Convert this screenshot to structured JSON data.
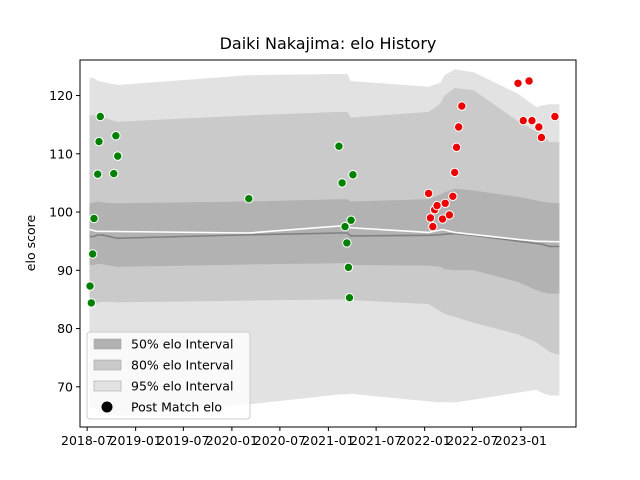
{
  "chart_data": {
    "type": "scatter",
    "title": "Daiki Nakajima: elo History",
    "xlabel": "",
    "ylabel": "elo score",
    "xlim": [
      "2018-06-04",
      "2023-07-29"
    ],
    "ylim": [
      63.1,
      126.1
    ],
    "x_ticks": [
      "2018-07",
      "2019-01",
      "2019-07",
      "2020-01",
      "2020-07",
      "2021-01",
      "2021-07",
      "2022-01",
      "2022-07",
      "2023-01"
    ],
    "x_tick_dates": [
      "2018-07-01",
      "2019-01-01",
      "2019-07-01",
      "2020-01-01",
      "2020-07-01",
      "2021-01-01",
      "2021-07-01",
      "2022-01-01",
      "2022-07-01",
      "2023-01-01"
    ],
    "y_ticks": [
      70,
      80,
      90,
      100,
      110,
      120
    ],
    "legend": {
      "position": "lower-left",
      "entries": [
        "50% elo Interval",
        "80% elo Interval",
        "95% elo Interval",
        "Post Match elo"
      ]
    },
    "colors": {
      "band95": "#e2e2e2",
      "band80": "#cacaca",
      "band50": "#b2b2b2",
      "mean_line": "#808080",
      "white_line": "#ffffff",
      "win": "#008000",
      "loss": "#ee0000"
    },
    "bands": {
      "x": [
        "2018-07-10",
        "2018-07-25",
        "2018-08-12",
        "2018-09-03",
        "2018-10-23",
        "2020-03-05",
        "2021-02-15",
        "2021-03-15",
        "2021-03-26",
        "2022-01-16",
        "2022-03-01",
        "2022-03-18",
        "2022-04-25",
        "2022-07-06",
        "2022-12-21",
        "2023-03-01",
        "2023-03-20",
        "2023-04-20",
        "2023-05-27"
      ],
      "mean": [
        95.8,
        95.8,
        96.1,
        96.0,
        95.5,
        96.1,
        96.4,
        96.4,
        95.9,
        96.0,
        96.1,
        96.2,
        96.3,
        96.0,
        95.0,
        94.6,
        94.5,
        94.1,
        94.1
      ],
      "p50_low": [
        90.9,
        90.9,
        91.1,
        91.0,
        90.6,
        91.0,
        91.2,
        91.2,
        90.9,
        90.8,
        90.6,
        90.2,
        90.0,
        90.0,
        88.0,
        86.6,
        86.3,
        86.0,
        86.0
      ],
      "p50_high": [
        101.6,
        101.6,
        101.8,
        101.6,
        101.5,
        101.8,
        102.2,
        102.2,
        101.8,
        102.2,
        103.0,
        103.4,
        104.0,
        103.7,
        102.6,
        102.0,
        101.8,
        101.6,
        101.5
      ],
      "p80_low": [
        84.1,
        84.1,
        84.5,
        84.6,
        84.5,
        84.8,
        85.0,
        85.0,
        84.9,
        84.2,
        83.0,
        82.5,
        82.0,
        81.0,
        79.0,
        77.6,
        77.0,
        76.0,
        75.5
      ],
      "p80_high": [
        116.6,
        116.6,
        116.4,
        116.2,
        115.5,
        116.6,
        117.2,
        117.2,
        116.2,
        117.2,
        118.6,
        120.0,
        121.3,
        120.9,
        115.6,
        113.8,
        113.5,
        112.0,
        112.0
      ],
      "p95_low": [
        66.5,
        66.5,
        66.0,
        65.5,
        65.0,
        67.0,
        68.7,
        68.7,
        68.8,
        67.5,
        67.3,
        67.4,
        67.3,
        67.8,
        69.0,
        69.5,
        69.0,
        68.5,
        68.5
      ],
      "p95_high": [
        123.0,
        123.0,
        122.5,
        122.3,
        121.8,
        123.5,
        123.7,
        123.7,
        122.5,
        121.5,
        122.2,
        123.5,
        124.5,
        124.0,
        120.3,
        118.0,
        118.3,
        118.5,
        118.5
      ]
    },
    "white_line": {
      "x": [
        "2018-07-10",
        "2018-08-05",
        "2020-03-05",
        "2021-03-10",
        "2021-03-28",
        "2022-01-16",
        "2022-03-10",
        "2022-04-25",
        "2022-12-21",
        "2023-03-01",
        "2023-05-27"
      ],
      "y": [
        97.0,
        96.7,
        96.4,
        97.7,
        97.3,
        96.5,
        97.0,
        96.5,
        95.3,
        95.0,
        94.9
      ]
    },
    "series": [
      {
        "outcome": "win",
        "points": [
          {
            "x": "2018-07-12",
            "y": 87.3
          },
          {
            "x": "2018-07-17",
            "y": 84.4
          },
          {
            "x": "2018-07-22",
            "y": 92.8
          },
          {
            "x": "2018-07-27",
            "y": 98.9
          },
          {
            "x": "2018-08-10",
            "y": 106.5
          },
          {
            "x": "2018-08-15",
            "y": 112.1
          },
          {
            "x": "2018-08-20",
            "y": 116.4
          },
          {
            "x": "2018-10-10",
            "y": 106.6
          },
          {
            "x": "2018-10-18",
            "y": 113.1
          },
          {
            "x": "2018-10-25",
            "y": 109.6
          },
          {
            "x": "2020-03-05",
            "y": 102.3
          },
          {
            "x": "2021-02-10",
            "y": 111.3
          },
          {
            "x": "2021-02-22",
            "y": 105.0
          },
          {
            "x": "2021-03-05",
            "y": 97.5
          },
          {
            "x": "2021-03-12",
            "y": 94.7
          },
          {
            "x": "2021-03-18",
            "y": 90.5
          },
          {
            "x": "2021-03-22",
            "y": 85.3
          },
          {
            "x": "2021-03-28",
            "y": 98.6
          },
          {
            "x": "2021-04-04",
            "y": 106.4
          }
        ]
      },
      {
        "outcome": "loss",
        "points": [
          {
            "x": "2022-01-16",
            "y": 103.2
          },
          {
            "x": "2022-01-23",
            "y": 99.0
          },
          {
            "x": "2022-02-01",
            "y": 97.5
          },
          {
            "x": "2022-02-08",
            "y": 100.4
          },
          {
            "x": "2022-02-17",
            "y": 101.1
          },
          {
            "x": "2022-03-10",
            "y": 98.8
          },
          {
            "x": "2022-03-20",
            "y": 101.5
          },
          {
            "x": "2022-04-05",
            "y": 99.5
          },
          {
            "x": "2022-04-18",
            "y": 102.7
          },
          {
            "x": "2022-04-25",
            "y": 106.8
          },
          {
            "x": "2022-05-02",
            "y": 111.1
          },
          {
            "x": "2022-05-10",
            "y": 114.6
          },
          {
            "x": "2022-05-22",
            "y": 118.2
          },
          {
            "x": "2022-12-21",
            "y": 122.1
          },
          {
            "x": "2023-01-10",
            "y": 115.7
          },
          {
            "x": "2023-02-01",
            "y": 122.5
          },
          {
            "x": "2023-02-12",
            "y": 115.7
          },
          {
            "x": "2023-03-10",
            "y": 114.6
          },
          {
            "x": "2023-03-20",
            "y": 112.8
          },
          {
            "x": "2023-05-10",
            "y": 116.4
          }
        ]
      }
    ]
  }
}
